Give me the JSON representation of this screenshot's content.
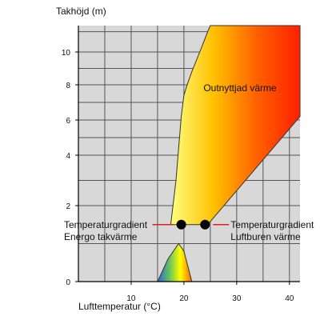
{
  "chart_data": {
    "type": "area",
    "title": "",
    "xlabel": "Lufttemperatur (°C)",
    "ylabel": "Takhöjd (m)",
    "xlim": [
      0,
      42
    ],
    "ylim": [
      0,
      11.3
    ],
    "xticks": [
      10,
      20,
      30,
      40
    ],
    "yticks": [
      0,
      2,
      4,
      6,
      8,
      10
    ],
    "grid": true,
    "regions": [
      {
        "name": "Outnyttjad värme",
        "label": "Outnyttjad värme",
        "polygon": [
          [
            17.5,
            1.5
          ],
          [
            18.5,
            3.0
          ],
          [
            19.0,
            4.4
          ],
          [
            19.5,
            6.2
          ],
          [
            20.0,
            7.4
          ],
          [
            20.5,
            7.9
          ],
          [
            21.5,
            8.8
          ],
          [
            23.0,
            10.0
          ],
          [
            24.5,
            11.0
          ],
          [
            25.0,
            11.3
          ],
          [
            42.0,
            11.3
          ],
          [
            42.0,
            6.2
          ],
          [
            24.5,
            1.5
          ]
        ],
        "gradient": [
          "#ffff80",
          "#ffc000",
          "#ff6000",
          "#ff2000"
        ]
      },
      {
        "name": "gradient-triangle",
        "label": "",
        "polygon": [
          [
            15.0,
            0.0
          ],
          [
            21.5,
            0.0
          ],
          [
            20.0,
            0.8
          ],
          [
            19.0,
            1.0
          ],
          [
            17.0,
            0.6
          ]
        ],
        "gradient": [
          "#3060e0",
          "#60c060",
          "#ffff00",
          "#ff6000"
        ]
      }
    ],
    "points": [
      {
        "x": 19.5,
        "y": 1.5,
        "label": "Temperaturgradient\nEnergo takvärme",
        "label_lines": [
          "Temperaturgradient",
          "Energo takvärme"
        ],
        "side": "left"
      },
      {
        "x": 24.0,
        "y": 1.5,
        "label": "Temperaturgradient\nLuftburen värme",
        "label_lines": [
          "Temperaturgradient",
          "Luftburen värme"
        ],
        "side": "right"
      }
    ],
    "leader_color": "#e02020",
    "plot_background": "#d8d8d8"
  }
}
